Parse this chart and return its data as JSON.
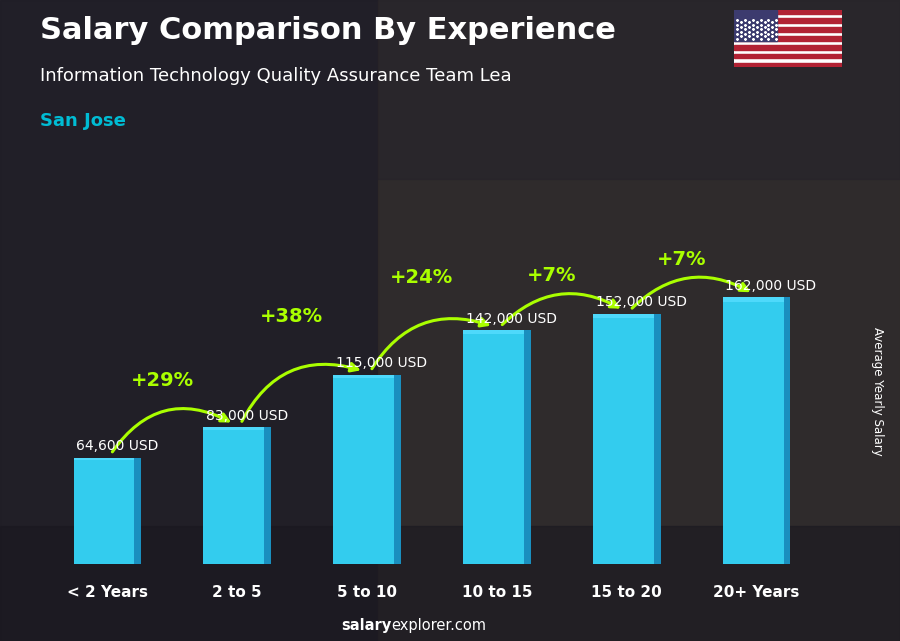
{
  "title": "Salary Comparison By Experience",
  "subtitle": "Information Technology Quality Assurance Team Lea",
  "city": "San Jose",
  "categories": [
    "< 2 Years",
    "2 to 5",
    "5 to 10",
    "10 to 15",
    "15 to 20",
    "20+ Years"
  ],
  "values": [
    64600,
    83000,
    115000,
    142000,
    152000,
    162000
  ],
  "value_labels": [
    "64,600 USD",
    "83,000 USD",
    "115,000 USD",
    "142,000 USD",
    "152,000 USD",
    "162,000 USD"
  ],
  "pct_changes": [
    "+29%",
    "+38%",
    "+24%",
    "+7%",
    "+7%"
  ],
  "bar_color_main": "#33ccee",
  "bar_color_right": "#1a8fbf",
  "bar_color_top": "#55ddff",
  "bg_dark": "#2a2a35",
  "bg_mid": "#3a3535",
  "text_white": "#ffffff",
  "text_cyan": "#00bcd4",
  "text_green": "#aaff00",
  "ylabel": "Average Yearly Salary",
  "watermark_bold": "salary",
  "watermark_rest": "explorer.com",
  "ylim_max": 210000,
  "title_fontsize": 22,
  "subtitle_fontsize": 13,
  "city_fontsize": 13,
  "bar_label_fontsize": 10,
  "pct_fontsize": 14,
  "cat_fontsize": 11
}
